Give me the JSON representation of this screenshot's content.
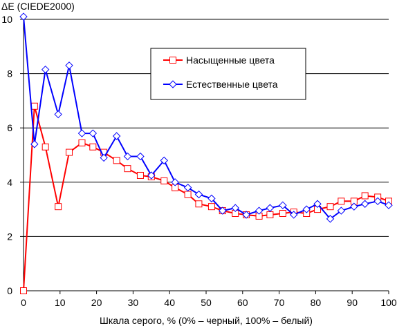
{
  "chart_data": {
    "type": "line",
    "ylabel": "ΔE (CIEDE2000)",
    "xlabel": "Шкала серого, % (0% – черный, 100% – белый)",
    "xlim": [
      0,
      100
    ],
    "ylim": [
      0,
      10
    ],
    "xticks": [
      0,
      10,
      20,
      30,
      40,
      50,
      60,
      70,
      80,
      90,
      100
    ],
    "yticks": [
      0,
      2,
      4,
      6,
      8,
      10
    ],
    "grid": "horizontal",
    "legend_position": "top-right",
    "series": [
      {
        "name": "Насыщенные цвета",
        "color": "#ff0000",
        "marker": "square",
        "x": [
          0,
          3,
          6,
          9.5,
          12.5,
          16,
          19,
          22,
          25.5,
          28.5,
          32,
          35,
          38.5,
          41.5,
          45,
          48,
          51.5,
          54.5,
          58,
          61,
          64.5,
          67.5,
          71,
          74,
          77.5,
          80.5,
          84,
          87,
          90.5,
          93.5,
          97,
          100
        ],
        "y": [
          0,
          6.8,
          5.3,
          3.1,
          5.1,
          5.45,
          5.3,
          5.1,
          4.8,
          4.5,
          4.25,
          4.2,
          4.05,
          3.8,
          3.55,
          3.2,
          3.1,
          2.95,
          2.85,
          2.8,
          2.75,
          2.8,
          2.85,
          2.9,
          2.85,
          3.0,
          3.1,
          3.3,
          3.3,
          3.5,
          3.45,
          3.3
        ]
      },
      {
        "name": "Естественные цвета",
        "color": "#0000ff",
        "marker": "diamond",
        "x": [
          0,
          3,
          6,
          9.5,
          12.5,
          16,
          19,
          22,
          25.5,
          28.5,
          32,
          35,
          38.5,
          41.5,
          45,
          48,
          51.5,
          54.5,
          58,
          61,
          64.5,
          67.5,
          71,
          74,
          77.5,
          80.5,
          84,
          87,
          90.5,
          93.5,
          97,
          100
        ],
        "y": [
          10.1,
          5.4,
          8.15,
          6.5,
          8.3,
          5.8,
          5.8,
          4.9,
          5.7,
          4.95,
          4.95,
          4.25,
          4.8,
          4.0,
          3.8,
          3.55,
          3.4,
          2.95,
          3.05,
          2.8,
          2.95,
          3.05,
          3.15,
          2.8,
          3.0,
          3.2,
          2.65,
          2.95,
          3.1,
          3.2,
          3.3,
          3.15
        ]
      }
    ]
  }
}
